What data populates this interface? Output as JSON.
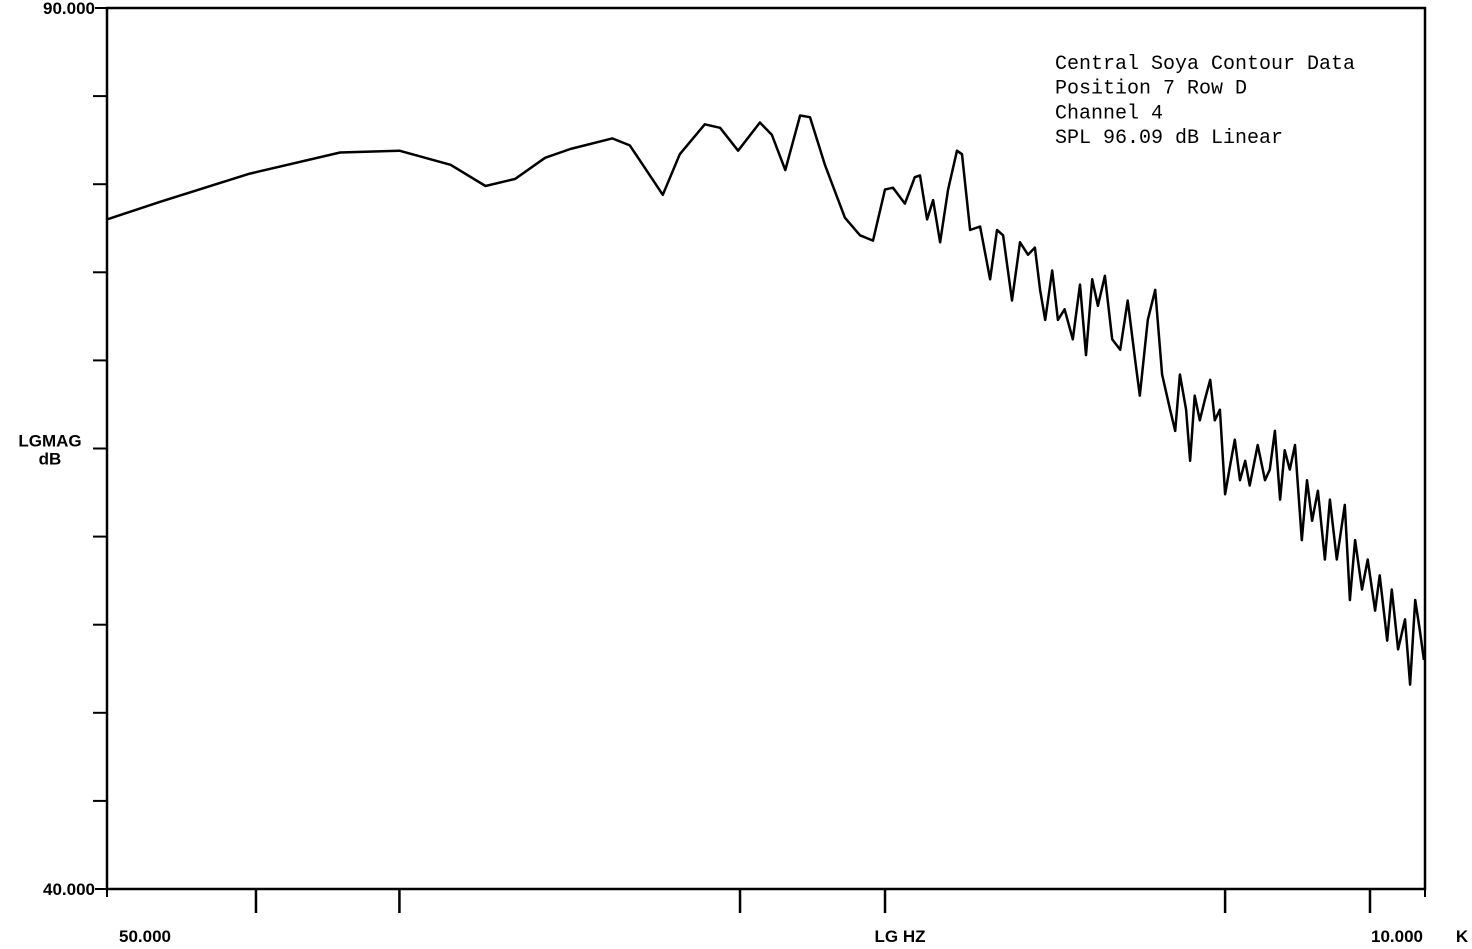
{
  "chart_data": {
    "type": "line",
    "log_x": true,
    "annotations": [
      "Central Soya Contour Data",
      "Position 7  Row D",
      "Channel 4",
      "SPL  96.09  dB  Linear"
    ],
    "ylabel": [
      "LGMAG",
      "dB"
    ],
    "ylabel_at": 65,
    "xlabel": "LG HZ",
    "x_unit": "K",
    "xlim": [
      50,
      10000
    ],
    "ylim": [
      40,
      90
    ],
    "xticks": [
      {
        "value": 50,
        "label": "50.000"
      },
      {
        "value": 10000,
        "label": "10.000"
      }
    ],
    "xminorticks": [
      91,
      162,
      637,
      1141,
      4477,
      8016
    ],
    "yticks": [
      {
        "value": 40,
        "label": "40.000"
      },
      {
        "value": 90,
        "label": "90.000"
      }
    ],
    "yminorticks": [
      45,
      50,
      55,
      60,
      65,
      70,
      75,
      80,
      85
    ],
    "series": [
      {
        "color": "#000000",
        "x": [
          50,
          61.9,
          88.8,
          127.6,
          162,
          199,
          229,
          258,
          291,
          322,
          381,
          409,
          467,
          500,
          553,
          588,
          632,
          690,
          724,
          764,
          811,
          844,
          896,
          971,
          1032,
          1087,
          1141,
          1178,
          1236,
          1286,
          1313,
          1351,
          1384,
          1424,
          1470,
          1524,
          1555,
          1606,
          1672,
          1741,
          1790,
          1834,
          1901,
          1963,
          2027,
          2084,
          2128,
          2172,
          2234,
          2286,
          2349,
          2427,
          2499,
          2559,
          2624,
          2685,
          2761,
          2844,
          2937,
          3027,
          3119,
          3177,
          3281,
          3381,
          3475,
          3589,
          3664,
          3733,
          3828,
          3890,
          3962,
          4045,
          4130,
          4217,
          4295,
          4385,
          4477,
          4571,
          4656,
          4753,
          4853,
          4943,
          5105,
          5256,
          5358,
          5470,
          5584,
          5689,
          5808,
          5929,
          6095,
          6223,
          6352,
          6501,
          6686,
          6823,
          7016,
          7244,
          7395,
          7549,
          7762,
          7943,
          8184,
          8334,
          8590,
          8750,
          8974,
          9226,
          9419,
          9615,
          9795,
          9954
        ],
        "values": [
          78.0,
          79.0,
          80.6,
          81.8,
          81.9,
          81.1,
          79.9,
          80.3,
          81.5,
          82.0,
          82.6,
          82.2,
          79.4,
          81.7,
          83.4,
          83.2,
          81.9,
          83.5,
          82.8,
          80.8,
          83.9,
          83.8,
          81.1,
          78.1,
          77.1,
          76.8,
          79.7,
          79.8,
          78.9,
          80.4,
          80.5,
          78.0,
          79.1,
          76.7,
          79.7,
          81.9,
          81.7,
          77.4,
          77.6,
          74.6,
          77.4,
          77.1,
          73.4,
          76.7,
          76.0,
          76.4,
          74.0,
          72.3,
          75.1,
          72.3,
          72.9,
          71.2,
          74.3,
          70.3,
          74.6,
          73.1,
          74.8,
          71.2,
          70.6,
          73.4,
          70.0,
          68.0,
          72.3,
          74.0,
          69.2,
          67.2,
          66.0,
          69.2,
          67.2,
          64.3,
          68.0,
          66.6,
          67.8,
          68.9,
          66.6,
          67.2,
          62.4,
          64.1,
          65.5,
          63.2,
          64.3,
          62.9,
          65.2,
          63.2,
          63.8,
          66.0,
          62.1,
          64.9,
          63.8,
          65.2,
          59.8,
          63.2,
          60.9,
          62.6,
          58.7,
          62.1,
          58.7,
          61.8,
          56.4,
          59.8,
          57.0,
          58.7,
          55.8,
          57.8,
          54.1,
          57.0,
          53.6,
          55.3,
          51.6,
          56.4,
          54.7,
          53.0
        ]
      }
    ]
  }
}
